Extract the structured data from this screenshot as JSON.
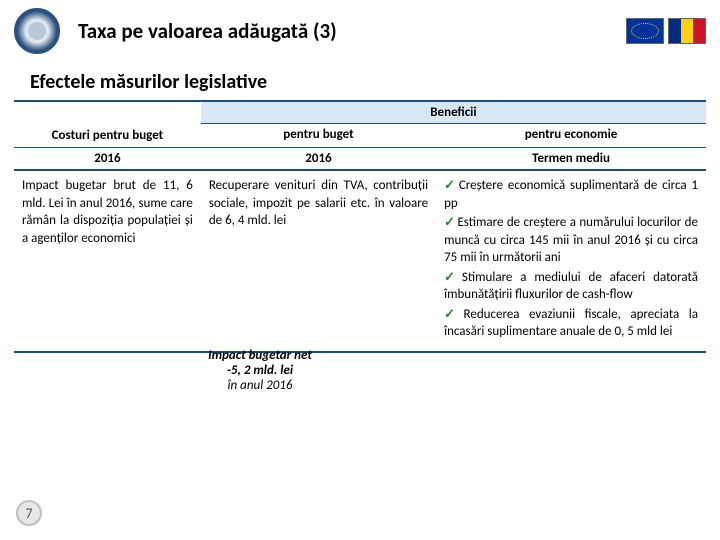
{
  "header": {
    "title": "Taxa pe valoarea adăugată (3)"
  },
  "subtitle": "Efectele măsurilor legislative",
  "table": {
    "beneficii_label": "Beneficii",
    "costuri_label": "Costuri pentru buget",
    "pentru_buget_label": "pentru buget",
    "pentru_economie_label": "pentru economie",
    "year_col1": "2016",
    "year_col2": "2016",
    "termen_label": "Termen mediu",
    "body_col1": "Impact bugetar brut de 11, 6 mld. Lei în anul 2016, sume care rămân la dispoziția populației și a agenților economici",
    "body_col2": "Recuperare venituri din TVA, contribuții sociale, impozit pe salarii etc. în valoare de 6, 4 mld. lei",
    "econ_items": [
      "Creștere economică suplimentară de circa 1 pp",
      "Estimare de creștere a numărului locurilor de muncă cu circa 145 mii în anul 2016 și cu circa 75 mii în următorii ani",
      "Stimulare a mediului de afaceri datorată îmbunătățirii fluxurilor de cash-flow",
      "Reducerea evaziunii fiscale, apreciata la încasări suplimentare anuale de 0, 5 mld lei"
    ]
  },
  "net": {
    "title": "Impact bugetar net",
    "value": "-5, 2 mld. lei",
    "year": "în anul 2016"
  },
  "page": "7"
}
